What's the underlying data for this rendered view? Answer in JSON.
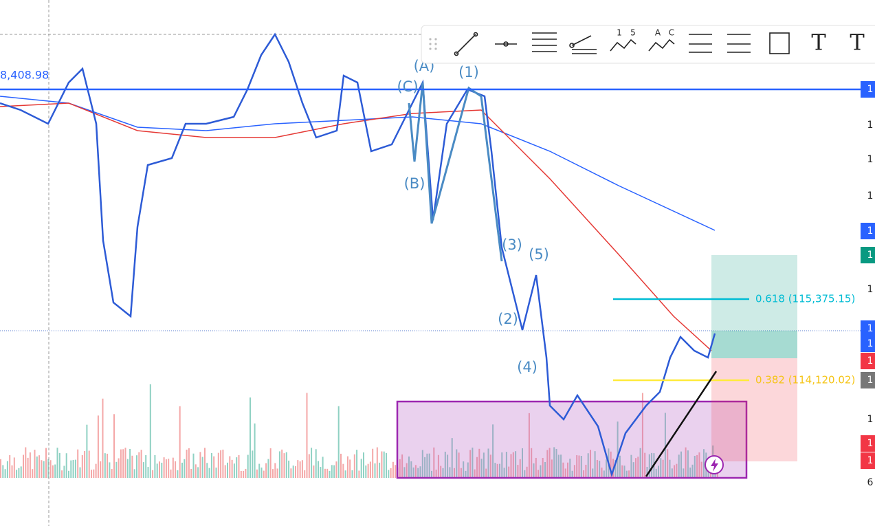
{
  "price_label": "8,408.98",
  "wave_labels": {
    "a": "(A)",
    "b": "(B)",
    "c": "(C)",
    "w1": "(1)",
    "w2": "(2)",
    "w3": "(3)",
    "w4": "(4)",
    "w5": "(5)"
  },
  "fib_levels": [
    "0.618 (115,375.15)",
    "0.382 (114,120.02)"
  ],
  "toolbar": {
    "wave_12345": [
      "1",
      "5"
    ],
    "wave_abc": [
      "A",
      "C"
    ],
    "text_tool": "T",
    "anchored_text_tool": "T"
  },
  "price_axis_labels": [
    "1",
    "1",
    "1",
    "1",
    "1",
    "1",
    "1",
    "1",
    "1",
    "1",
    "1",
    "1",
    "1",
    "1",
    "6"
  ]
}
